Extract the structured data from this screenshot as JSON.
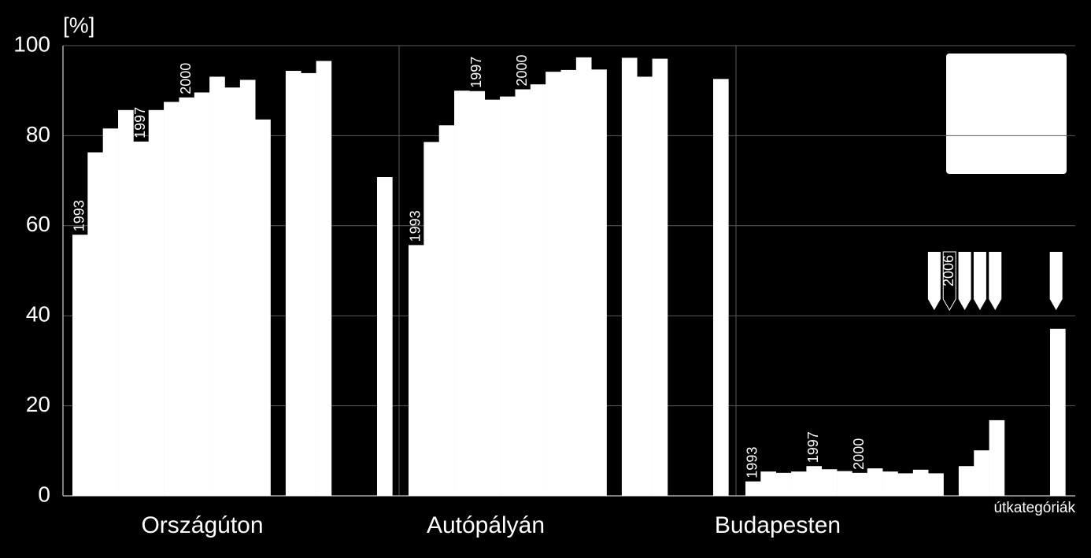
{
  "chart_data": {
    "type": "bar",
    "y_label": "[%]",
    "x_label": "útkategóriák",
    "categories": [
      "Országúton",
      "Autópályán",
      "Budapesten"
    ],
    "color": "#ffffff",
    "ylim": [
      0,
      100
    ],
    "yticks": [
      0,
      20,
      40,
      60,
      80,
      100
    ],
    "grid": true,
    "panels": [
      {
        "values": [
          58.0,
          76.3,
          81.6,
          85.7,
          78.7,
          85.7,
          87.5,
          88.5,
          89.6,
          93.1,
          90.7,
          92.4,
          83.6,
          null,
          94.4,
          93.9,
          96.6,
          null,
          null,
          null,
          70.8
        ],
        "year_labels": [
          "1993",
          null,
          null,
          null,
          "1997",
          null,
          null,
          "2000",
          null,
          null,
          null,
          null,
          null,
          null,
          null,
          null,
          null,
          null,
          null,
          null,
          null
        ]
      },
      {
        "values": [
          55.7,
          78.6,
          82.3,
          90.0,
          89.9,
          88.0,
          88.7,
          90.3,
          91.4,
          94.2,
          94.6,
          97.4,
          94.7,
          null,
          97.3,
          93.1,
          97.1,
          null,
          null,
          null,
          92.6
        ],
        "year_labels": [
          "1993",
          null,
          null,
          null,
          "1997",
          null,
          null,
          "2000",
          null,
          null,
          null,
          null,
          null,
          null,
          null,
          null,
          null,
          null,
          null,
          null,
          null
        ]
      },
      {
        "values": [
          3.2,
          5.4,
          5.1,
          5.4,
          6.6,
          5.9,
          5.5,
          5.1,
          6.1,
          5.4,
          5.0,
          5.8,
          5.0,
          null,
          6.6,
          10.1,
          16.8,
          null,
          null,
          null,
          37.1
        ],
        "year_labels": [
          "1993",
          null,
          null,
          null,
          "1997",
          null,
          null,
          "2000",
          null,
          null,
          null,
          null,
          null,
          null,
          null,
          null,
          null,
          null,
          null,
          null,
          null
        ]
      }
    ],
    "marker_label": "2006"
  }
}
